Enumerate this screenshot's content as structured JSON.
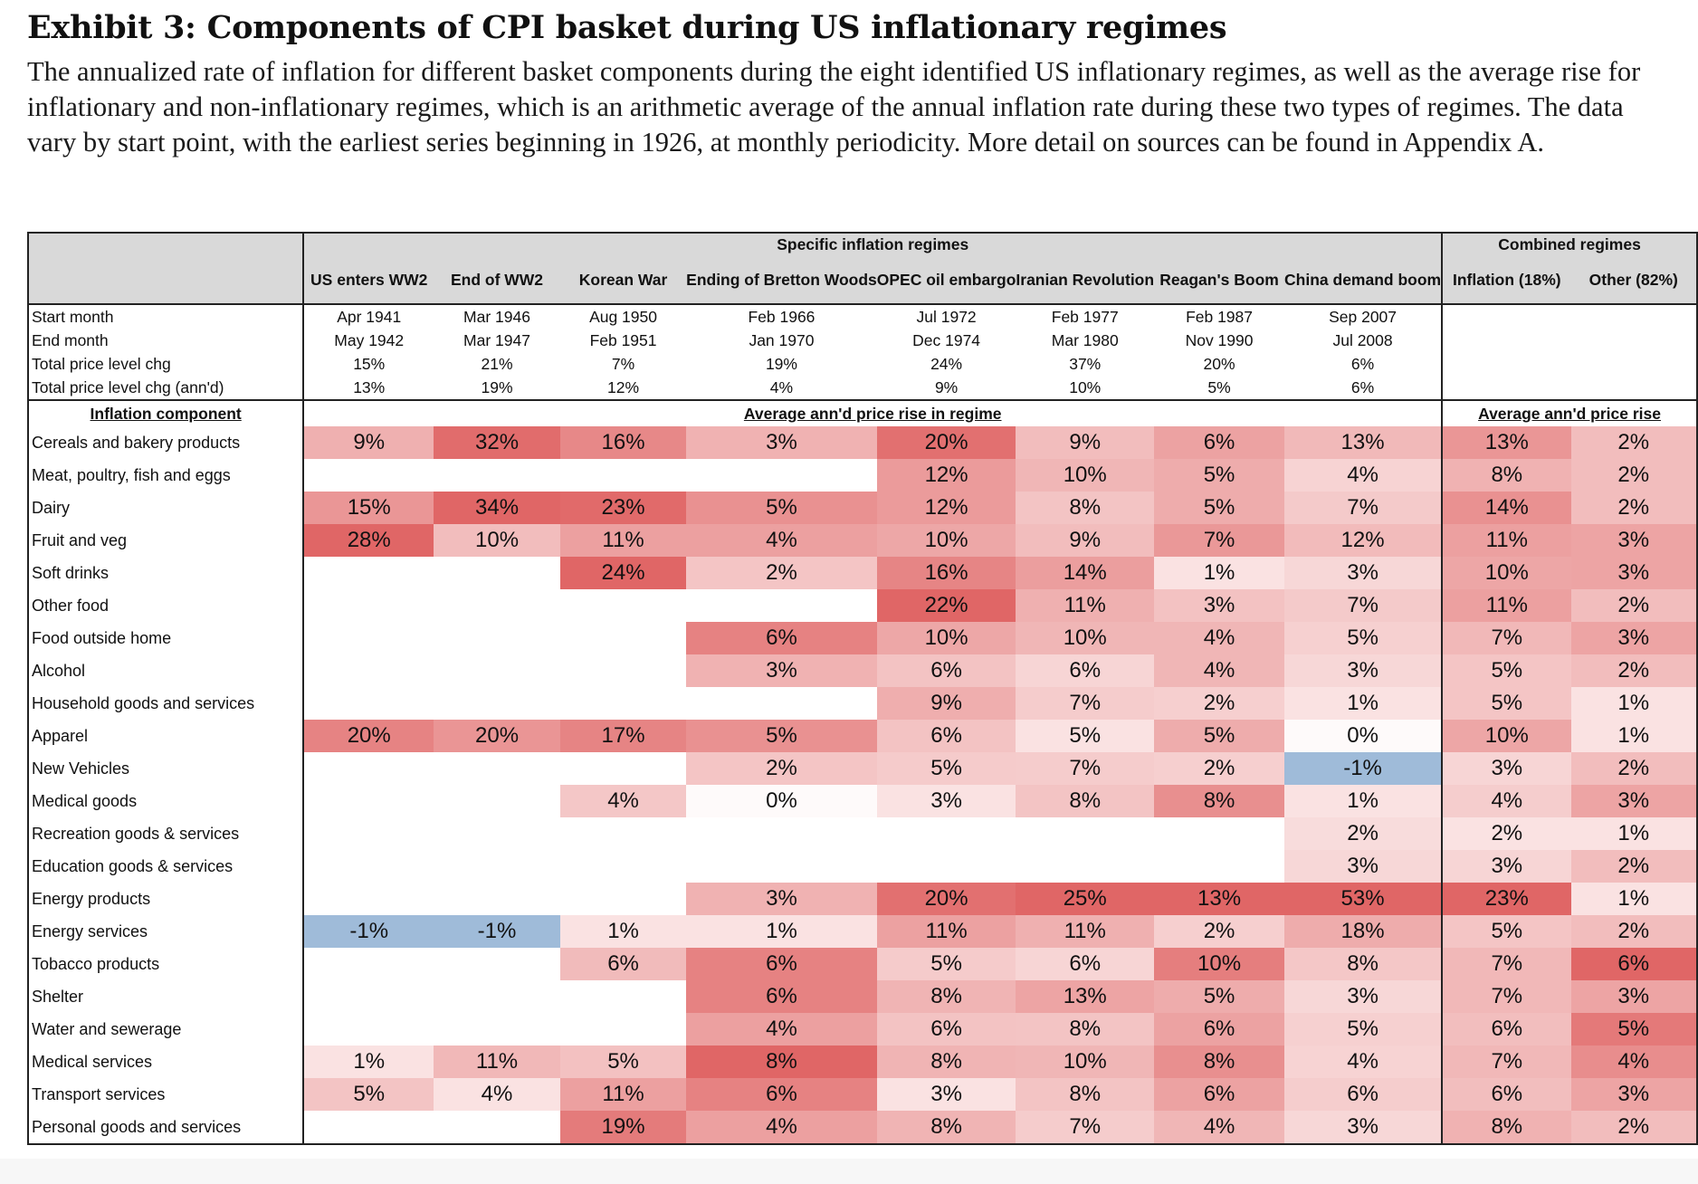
{
  "header": {
    "title": "Exhibit 3: Components of CPI basket during US inflationary regimes",
    "subtitle": "The annualized rate of inflation for different basket components during the eight identified US inflationary regimes, as well as the average rise for inflationary and non-inflationary regimes, which is an arithmetic average of the annual inflation rate during these two types of regimes. The data vary by start point, with the earliest series beginning in 1926, at monthly periodicity. More detail on sources can be found in Appendix A."
  },
  "colors": {
    "high": "#e06666",
    "low": "#fdf3f3",
    "negative": "#9fbbd9",
    "header_bg": "#d9d9d9",
    "border": "#222222"
  },
  "chart_data": {
    "type": "table",
    "band_specific": "Specific inflation regimes",
    "band_combined": "Combined regimes",
    "regimes": [
      "US enters WW2",
      "End of WW2",
      "Korean War",
      "Ending of Bretton Woods",
      "OPEC oil embargo",
      "Iranian Revolution",
      "Reagan's Boom",
      "China demand boom"
    ],
    "combined": [
      "Inflation (18%)",
      "Other (82%)"
    ],
    "meta_rows": [
      {
        "label": "Start month",
        "values": [
          "Apr 1941",
          "Mar 1946",
          "Aug 1950",
          "Feb 1966",
          "Jul 1972",
          "Feb 1977",
          "Feb 1987",
          "Sep 2007"
        ]
      },
      {
        "label": "End month",
        "values": [
          "May 1942",
          "Mar 1947",
          "Feb 1951",
          "Jan 1970",
          "Dec 1974",
          "Mar 1980",
          "Nov 1990",
          "Jul 2008"
        ]
      },
      {
        "label": "Total price level chg",
        "values": [
          "15%",
          "21%",
          "7%",
          "19%",
          "24%",
          "37%",
          "20%",
          "6%"
        ]
      },
      {
        "label": "Total price level chg (ann'd)",
        "values": [
          "13%",
          "19%",
          "12%",
          "4%",
          "9%",
          "10%",
          "5%",
          "6%"
        ]
      }
    ],
    "section_label": "Inflation component",
    "section_specific": "Average ann'd price rise in regime",
    "section_combined": "Average ann'd price rise",
    "rows": [
      {
        "label": "Cereals and bakery products",
        "values": [
          9,
          32,
          16,
          3,
          20,
          9,
          6,
          13,
          13,
          2
        ]
      },
      {
        "label": "Meat, poultry, fish and eggs",
        "values": [
          null,
          null,
          null,
          null,
          12,
          10,
          5,
          4,
          8,
          2
        ]
      },
      {
        "label": "Dairy",
        "values": [
          15,
          34,
          23,
          5,
          12,
          8,
          5,
          7,
          14,
          2
        ]
      },
      {
        "label": "Fruit and veg",
        "values": [
          28,
          10,
          11,
          4,
          10,
          9,
          7,
          12,
          11,
          3
        ]
      },
      {
        "label": "Soft drinks",
        "values": [
          null,
          null,
          24,
          2,
          16,
          14,
          1,
          3,
          10,
          3
        ]
      },
      {
        "label": "Other food",
        "values": [
          null,
          null,
          null,
          null,
          22,
          11,
          3,
          7,
          11,
          2
        ]
      },
      {
        "label": "Food outside home",
        "values": [
          null,
          null,
          null,
          6,
          10,
          10,
          4,
          5,
          7,
          3
        ]
      },
      {
        "label": "Alcohol",
        "values": [
          null,
          null,
          null,
          3,
          6,
          6,
          4,
          3,
          5,
          2
        ]
      },
      {
        "label": "Household goods and services",
        "values": [
          null,
          null,
          null,
          null,
          9,
          7,
          2,
          1,
          5,
          1
        ]
      },
      {
        "label": "Apparel",
        "values": [
          20,
          20,
          17,
          5,
          6,
          5,
          5,
          0,
          10,
          1
        ]
      },
      {
        "label": "New Vehicles",
        "values": [
          null,
          null,
          null,
          2,
          5,
          7,
          2,
          -1,
          3,
          2
        ]
      },
      {
        "label": "Medical goods",
        "values": [
          null,
          null,
          4,
          0,
          3,
          8,
          8,
          1,
          4,
          3
        ]
      },
      {
        "label": "Recreation goods & services",
        "values": [
          null,
          null,
          null,
          null,
          null,
          null,
          null,
          2,
          2,
          1
        ]
      },
      {
        "label": "Education goods & services",
        "values": [
          null,
          null,
          null,
          null,
          null,
          null,
          null,
          3,
          3,
          2
        ]
      },
      {
        "label": "Energy products",
        "values": [
          null,
          null,
          null,
          3,
          20,
          25,
          13,
          53,
          23,
          1
        ]
      },
      {
        "label": "Energy services",
        "values": [
          -1,
          -1,
          1,
          1,
          11,
          11,
          2,
          18,
          5,
          2
        ]
      },
      {
        "label": "Tobacco products",
        "values": [
          null,
          null,
          6,
          6,
          5,
          6,
          10,
          8,
          7,
          6
        ]
      },
      {
        "label": "Shelter",
        "values": [
          null,
          null,
          null,
          6,
          8,
          13,
          5,
          3,
          7,
          3
        ]
      },
      {
        "label": "Water and sewerage",
        "values": [
          null,
          null,
          null,
          4,
          6,
          8,
          6,
          5,
          6,
          5
        ]
      },
      {
        "label": "Medical services",
        "values": [
          1,
          11,
          5,
          8,
          8,
          10,
          8,
          4,
          7,
          4
        ]
      },
      {
        "label": "Transport services",
        "values": [
          5,
          4,
          11,
          6,
          3,
          8,
          6,
          6,
          6,
          3
        ]
      },
      {
        "label": "Personal goods and services",
        "values": [
          null,
          null,
          19,
          4,
          8,
          7,
          4,
          3,
          8,
          2
        ]
      }
    ]
  }
}
